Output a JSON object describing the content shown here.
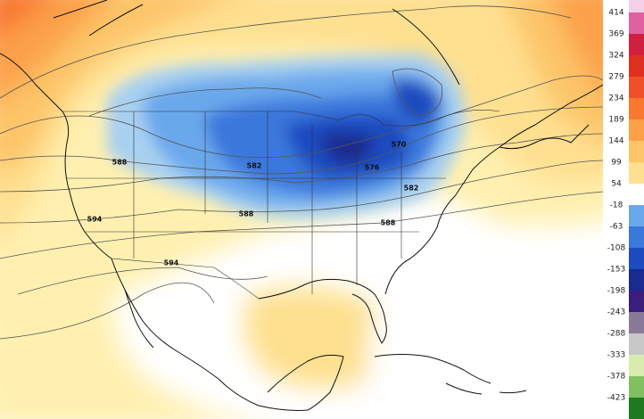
{
  "colorbar": {
    "labels": [
      414,
      369,
      324,
      279,
      234,
      189,
      144,
      99,
      54,
      -18,
      -63,
      -108,
      -153,
      -198,
      -243,
      -288,
      -333,
      -378,
      -423
    ],
    "colors": [
      "#f4d0e8",
      "#e060a0",
      "#d02040",
      "#e03020",
      "#f05028",
      "#f87830",
      "#fca048",
      "#fdc468",
      "#fee090",
      "#ffffff",
      "#6aa8ec",
      "#3a78dc",
      "#1c4cc0",
      "#1a2a90",
      "#3a1e78",
      "#8a7a9a",
      "#c8c8c8",
      "#d8ecb0",
      "#80c060",
      "#1e7a1e"
    ]
  },
  "contour_labels": [
    588,
    582,
    570,
    576,
    582,
    588,
    588,
    594,
    594
  ]
}
